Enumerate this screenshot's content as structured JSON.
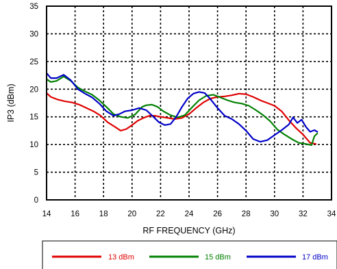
{
  "chart_data": {
    "type": "line",
    "title": "",
    "xlabel": "RF FREQUENCY (GHz)",
    "ylabel": "IP3 (dBm)",
    "xlim": [
      14,
      34
    ],
    "ylim": [
      0,
      35
    ],
    "xticks": [
      "14",
      "16",
      "18",
      "20",
      "22",
      "24",
      "26",
      "28",
      "30",
      "32",
      "34"
    ],
    "yticks": [
      "0",
      "5",
      "10",
      "15",
      "20",
      "25",
      "30",
      "35"
    ],
    "grid": true,
    "legend_position": "bottom",
    "series": [
      {
        "name": "13 dBm",
        "color": "#e00000",
        "x": [
          14.0,
          14.3,
          14.8,
          15.3,
          15.8,
          16.3,
          16.8,
          17.3,
          17.8,
          18.3,
          18.8,
          19.2,
          19.6,
          20.0,
          20.4,
          20.8,
          21.2,
          21.6,
          22.0,
          22.5,
          23.0,
          23.5,
          24.0,
          24.5,
          25.0,
          25.5,
          26.0,
          26.5,
          27.0,
          27.5,
          28.0,
          28.5,
          29.0,
          29.5,
          30.0,
          30.5,
          31.0,
          31.5,
          32.0,
          32.5,
          32.9
        ],
        "y": [
          19.3,
          18.6,
          18.1,
          17.8,
          17.6,
          17.2,
          16.6,
          16.0,
          15.2,
          14.0,
          13.2,
          12.5,
          12.8,
          13.5,
          14.3,
          14.8,
          15.2,
          15.2,
          15.0,
          14.8,
          14.6,
          14.8,
          15.5,
          16.6,
          17.6,
          18.3,
          18.6,
          18.7,
          18.9,
          19.2,
          19.1,
          18.6,
          18.0,
          17.5,
          17.0,
          16.0,
          14.4,
          13.0,
          11.8,
          10.3,
          10.1
        ]
      },
      {
        "name": "15 dBm",
        "color": "#008000",
        "x": [
          14.0,
          14.3,
          14.7,
          15.2,
          15.7,
          16.2,
          16.7,
          17.2,
          17.7,
          18.2,
          18.7,
          19.2,
          19.7,
          20.2,
          20.7,
          21.0,
          21.4,
          21.8,
          22.2,
          22.7,
          23.2,
          23.7,
          24.2,
          24.7,
          25.2,
          25.7,
          26.2,
          26.7,
          27.2,
          27.7,
          28.2,
          28.7,
          29.2,
          29.7,
          30.2,
          30.7,
          31.2,
          31.7,
          32.2,
          32.6,
          32.8,
          33.0
        ],
        "y": [
          21.8,
          21.3,
          21.5,
          22.3,
          21.5,
          20.3,
          19.6,
          19.0,
          18.0,
          16.8,
          15.5,
          15.0,
          14.8,
          15.4,
          16.8,
          17.1,
          17.2,
          16.8,
          16.0,
          15.3,
          14.9,
          15.3,
          16.7,
          18.0,
          18.8,
          19.0,
          18.5,
          18.0,
          17.6,
          17.4,
          17.0,
          16.2,
          15.3,
          14.2,
          12.7,
          11.8,
          11.0,
          10.3,
          10.1,
          9.9,
          11.5,
          12.0
        ]
      },
      {
        "name": "17 dBm",
        "color": "#0000c8",
        "x": [
          14.0,
          14.3,
          14.7,
          15.2,
          15.7,
          16.2,
          16.7,
          17.2,
          17.7,
          18.2,
          18.7,
          19.1,
          19.5,
          20.0,
          20.5,
          21.0,
          21.5,
          21.9,
          22.3,
          22.7,
          23.1,
          23.5,
          23.9,
          24.3,
          24.7,
          25.1,
          25.5,
          26.0,
          26.5,
          27.0,
          27.5,
          28.0,
          28.5,
          29.0,
          29.5,
          30.0,
          30.5,
          31.0,
          31.3,
          31.6,
          31.9,
          32.2,
          32.5,
          32.8,
          33.0
        ],
        "y": [
          22.9,
          22.0,
          22.0,
          22.6,
          21.6,
          20.0,
          19.2,
          18.5,
          17.4,
          16.0,
          15.2,
          15.5,
          16.0,
          16.2,
          16.6,
          16.2,
          15.0,
          14.0,
          13.5,
          13.7,
          15.0,
          16.8,
          18.3,
          19.2,
          19.5,
          19.3,
          18.2,
          16.6,
          15.2,
          14.6,
          13.7,
          12.5,
          11.0,
          10.5,
          10.8,
          11.7,
          12.6,
          13.6,
          14.9,
          13.9,
          14.5,
          13.2,
          12.3,
          12.6,
          12.3
        ]
      }
    ]
  }
}
